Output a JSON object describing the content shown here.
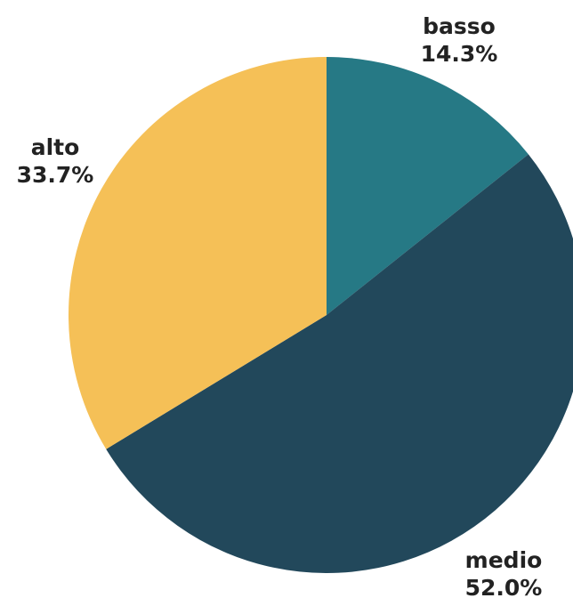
{
  "chart_data": {
    "type": "pie",
    "start": "top",
    "direction": "clockwise",
    "slices": [
      {
        "label": "basso",
        "value": 14.3,
        "value_label": "14.3%",
        "color": "#267985"
      },
      {
        "label": "medio",
        "value": 52.0,
        "value_label": "52.0%",
        "color": "#22485b"
      },
      {
        "label": "alto",
        "value": 33.7,
        "value_label": "33.7%",
        "color": "#f5c057"
      }
    ]
  }
}
